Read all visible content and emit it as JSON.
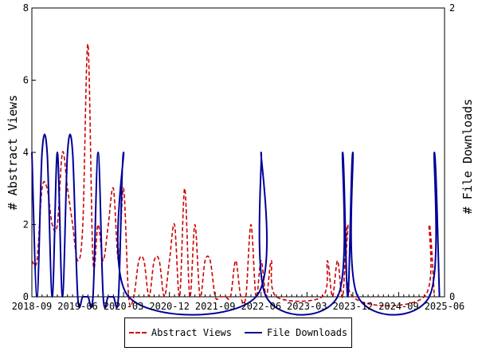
{
  "chart_data": {
    "type": "line",
    "x_tick_labels": [
      "2018-09",
      "2019-06",
      "2020-03",
      "2020-12",
      "2021-09",
      "2022-06",
      "2023-03",
      "2023-12",
      "2024-09",
      "2025-06"
    ],
    "ylabel_left": "# Abstract Views",
    "ylabel_right": "# File Downloads",
    "ylim_left": [
      0,
      8
    ],
    "ylim_right": [
      0,
      2
    ],
    "yticks_left": [
      0,
      2,
      4,
      6,
      8
    ],
    "yticks_right": [
      0,
      2
    ],
    "grid": false,
    "legend_position": "bottom-center",
    "series": [
      {
        "name": "Abstract Views",
        "axis": "left",
        "color": "#cc0000",
        "style": "dashed",
        "x": [
          "2018-09",
          "2018-10",
          "2018-11",
          "2018-12",
          "2019-01",
          "2019-02",
          "2019-03",
          "2019-04",
          "2019-05",
          "2019-06",
          "2019-07",
          "2019-08",
          "2019-09",
          "2019-10",
          "2019-11",
          "2019-12",
          "2020-01",
          "2020-02",
          "2020-03",
          "2020-04",
          "2020-05",
          "2020-06",
          "2020-07",
          "2020-08",
          "2020-09",
          "2020-10",
          "2020-11",
          "2020-12",
          "2021-01",
          "2021-02",
          "2021-03",
          "2021-04",
          "2021-05",
          "2021-06",
          "2021-07",
          "2021-08",
          "2021-09",
          "2021-10",
          "2021-11",
          "2021-12",
          "2022-01",
          "2022-02",
          "2022-03",
          "2022-04",
          "2022-05",
          "2022-06",
          "2022-07",
          "2022-08",
          "2022-09",
          "2023-06",
          "2023-07",
          "2023-08",
          "2023-09",
          "2023-10",
          "2023-11",
          "2023-12",
          "2025-02",
          "2025-03",
          "2025-04"
        ],
        "values": [
          1,
          1,
          3,
          3,
          2,
          2,
          4,
          3,
          2,
          1,
          2,
          7,
          1,
          2,
          1,
          2,
          3,
          1,
          3,
          0,
          0,
          1,
          1,
          0,
          1,
          1,
          0,
          1,
          2,
          0,
          3,
          0,
          2,
          0,
          1,
          1,
          0,
          0,
          0,
          0,
          1,
          0,
          0,
          2,
          0,
          1,
          0,
          1,
          0,
          0,
          1,
          0,
          1,
          0,
          2,
          0,
          0,
          2,
          0
        ]
      },
      {
        "name": "File Downloads",
        "axis": "right",
        "color": "#000099",
        "style": "solid",
        "x": [
          "2018-09",
          "2018-10",
          "2018-11",
          "2018-12",
          "2019-01",
          "2019-02",
          "2019-03",
          "2019-04",
          "2019-05",
          "2019-06",
          "2019-07",
          "2019-08",
          "2019-09",
          "2019-10",
          "2019-11",
          "2019-12",
          "2020-01",
          "2020-02",
          "2020-03",
          "2020-04",
          "2022-05",
          "2022-06",
          "2022-07",
          "2023-09",
          "2023-10",
          "2023-11",
          "2023-12",
          "2024-01",
          "2025-03",
          "2025-04",
          "2025-05"
        ],
        "values": [
          1,
          0,
          1,
          1,
          0,
          1,
          0,
          1,
          1,
          0,
          0,
          0,
          0,
          1,
          0,
          0,
          0,
          0,
          1,
          0,
          0,
          1,
          0,
          0,
          1,
          0,
          1,
          0,
          0,
          1,
          0
        ]
      }
    ]
  }
}
